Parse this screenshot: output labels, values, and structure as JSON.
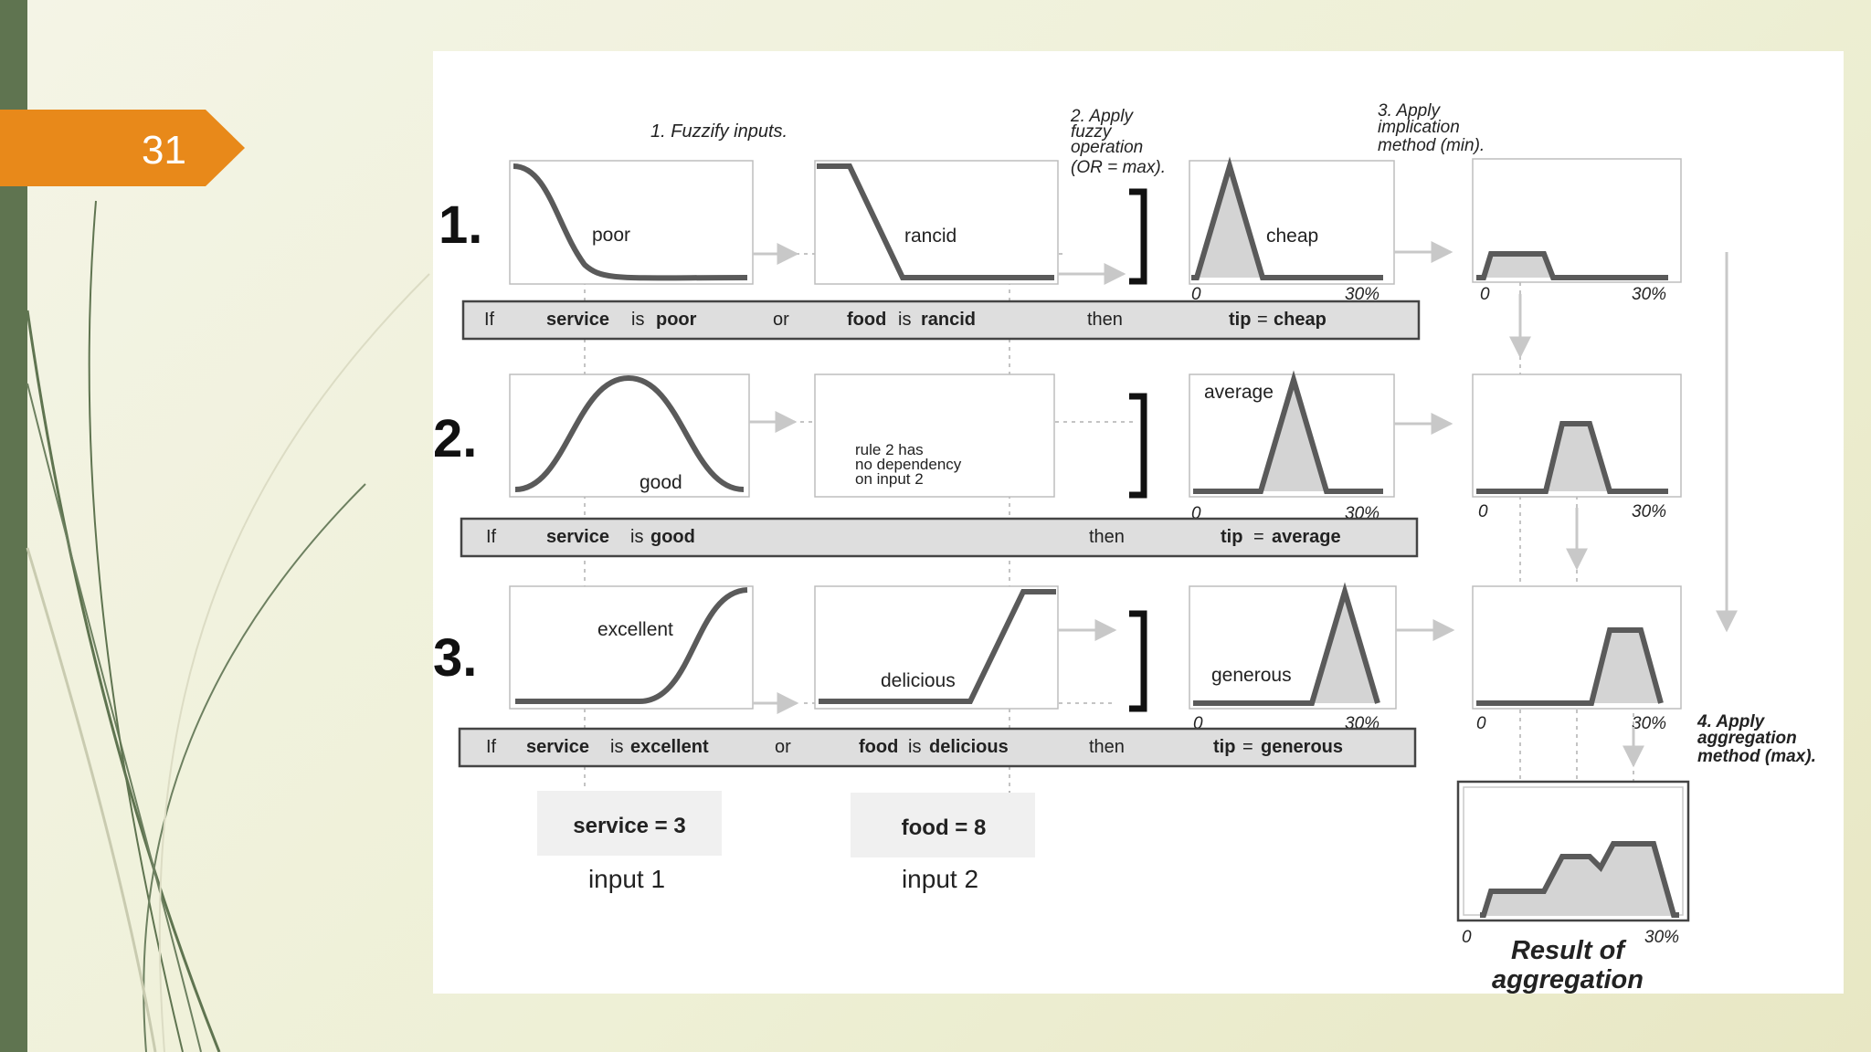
{
  "slide_number": "31",
  "steps": {
    "step1": "1. Fuzzify inputs.",
    "step2": [
      "2. Apply",
      "fuzzy",
      "operation",
      "(OR = max)."
    ],
    "step3": [
      "3. Apply",
      "implication",
      "method (min)."
    ],
    "step4": [
      "4. Apply",
      "aggregation",
      "method (max)."
    ]
  },
  "rule_numbers": [
    "1.",
    "2.",
    "3."
  ],
  "rules": [
    {
      "mf_service": "poor",
      "mf_food": "rancid",
      "mf_tip": "cheap",
      "text": {
        "if": "If",
        "input1": "service",
        "is1": "is",
        "value1": "poor",
        "op": "or",
        "input2": "food",
        "is2": "is",
        "value2": "rancid",
        "then": "then",
        "output": "tip",
        "eq": "=",
        "value_out": "cheap"
      }
    },
    {
      "mf_service": "good",
      "mf_tip": "average",
      "no_dependency": [
        "rule 2 has",
        "no dependency",
        "on input 2"
      ],
      "text": {
        "if": "If",
        "input1": "service",
        "is1": "is",
        "value1": "good",
        "then": "then",
        "output": "tip",
        "eq": "=",
        "value_out": "average"
      }
    },
    {
      "mf_service": "excellent",
      "mf_food": "delicious",
      "mf_tip": "generous",
      "text": {
        "if": "If",
        "input1": "service",
        "is1": "is",
        "value1": "excellent",
        "op": "or",
        "input2": "food",
        "is2": "is",
        "value2": "delicious",
        "then": "then",
        "output": "tip",
        "eq": "=",
        "value_out": "generous"
      }
    }
  ],
  "axis": {
    "zero": "0",
    "max": "30%"
  },
  "inputs": [
    {
      "value": "service = 3",
      "label": "input 1"
    },
    {
      "value": "food = 8",
      "label": "input 2"
    }
  ],
  "result": [
    "Result of",
    "aggregation"
  ],
  "colors": {
    "orange": "#e8891a",
    "green": "#5f7450",
    "fill": "#d4d4d4",
    "curve": "#5a5a5a"
  }
}
